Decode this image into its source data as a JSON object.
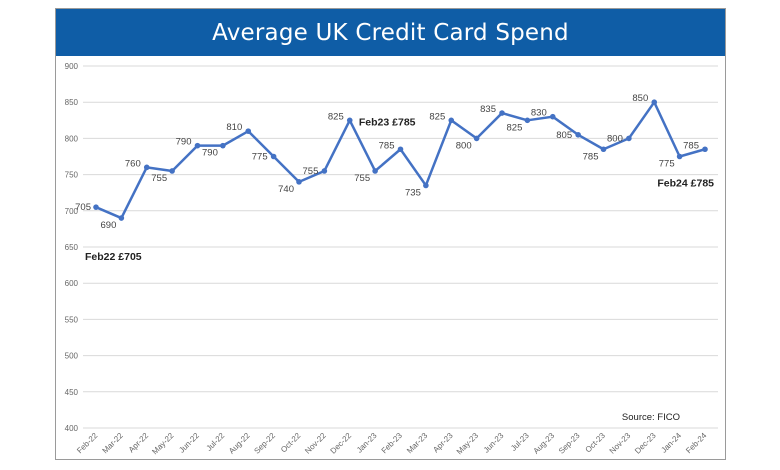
{
  "title": "Average UK Credit Card Spend",
  "source": "Source: FICO",
  "colors": {
    "title_bar": "#0f5da6",
    "line": "#4472c4",
    "grid": "#d9d9d9"
  },
  "chart_data": {
    "type": "line",
    "title": "Average UK Credit Card Spend",
    "xlabel": "",
    "ylabel": "",
    "ylim": [
      400,
      900
    ],
    "yticks": [
      400,
      450,
      500,
      550,
      600,
      650,
      700,
      750,
      800,
      850,
      900
    ],
    "grid": true,
    "categories": [
      "Feb-22",
      "Mar-22",
      "Apr-22",
      "May-22",
      "Jun-22",
      "Jul-22",
      "Aug-22",
      "Sep-22",
      "Oct-22",
      "Nov-22",
      "Dec-22",
      "Jan-23",
      "Feb-23",
      "Mar-23",
      "Apr-23",
      "May-23",
      "Jun-23",
      "Jul-23",
      "Aug-23",
      "Sep-23",
      "Oct-23",
      "Nov-23",
      "Dec-23",
      "Jan-24",
      "Feb-24"
    ],
    "values": [
      705,
      690,
      760,
      755,
      790,
      790,
      810,
      775,
      740,
      755,
      825,
      755,
      785,
      735,
      825,
      800,
      835,
      825,
      830,
      805,
      785,
      800,
      850,
      775,
      785
    ],
    "data_labels": [
      "705",
      "690",
      "760",
      "755",
      "790",
      "790",
      "810",
      "775",
      "740",
      "755",
      "825",
      "755",
      "785",
      "735",
      "825",
      "800",
      "835",
      "825",
      "830",
      "805",
      "785",
      "800",
      "850",
      "775",
      "785"
    ],
    "annotations": [
      {
        "text": "Feb22 £705",
        "index": 0
      },
      {
        "text": "Feb23 £785",
        "index": 12
      },
      {
        "text": "Feb24 £785",
        "index": 24
      }
    ]
  }
}
